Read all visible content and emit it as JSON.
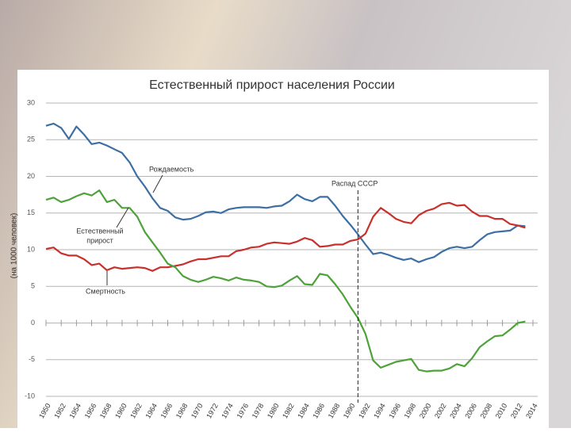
{
  "chart_data": {
    "type": "line",
    "title": "Естественный прирост населения России",
    "ylabel": "(на 1000 человек)",
    "x": [
      1950,
      1951,
      1952,
      1953,
      1954,
      1955,
      1956,
      1957,
      1958,
      1959,
      1960,
      1961,
      1962,
      1963,
      1964,
      1965,
      1966,
      1967,
      1968,
      1969,
      1970,
      1971,
      1972,
      1973,
      1974,
      1975,
      1976,
      1977,
      1978,
      1979,
      1980,
      1981,
      1982,
      1983,
      1984,
      1985,
      1986,
      1987,
      1988,
      1989,
      1990,
      1991,
      1992,
      1993,
      1994,
      1995,
      1996,
      1997,
      1998,
      1999,
      2000,
      2001,
      2002,
      2003,
      2004,
      2005,
      2006,
      2007,
      2008,
      2009,
      2010,
      2011,
      2012,
      2013
    ],
    "series": [
      {
        "name": "Рождаемость",
        "color": "#3d6fa5",
        "values": [
          26.9,
          27.2,
          26.6,
          25.1,
          26.8,
          25.7,
          24.4,
          24.6,
          24.2,
          23.7,
          23.2,
          21.9,
          20.0,
          18.6,
          17.0,
          15.7,
          15.3,
          14.4,
          14.1,
          14.2,
          14.6,
          15.1,
          15.2,
          15.0,
          15.5,
          15.7,
          15.8,
          15.8,
          15.8,
          15.7,
          15.9,
          16.0,
          16.6,
          17.5,
          16.9,
          16.6,
          17.2,
          17.2,
          16.0,
          14.6,
          13.4,
          12.1,
          10.7,
          9.4,
          9.6,
          9.3,
          8.9,
          8.6,
          8.8,
          8.3,
          8.7,
          9.0,
          9.7,
          10.2,
          10.4,
          10.2,
          10.4,
          11.3,
          12.1,
          12.4,
          12.5,
          12.6,
          13.3,
          13.2
        ]
      },
      {
        "name": "Смертность",
        "color": "#c8302c",
        "values": [
          10.1,
          10.3,
          9.5,
          9.2,
          9.2,
          8.7,
          7.9,
          8.1,
          7.2,
          7.6,
          7.4,
          7.5,
          7.6,
          7.5,
          7.1,
          7.6,
          7.6,
          7.8,
          8.0,
          8.4,
          8.7,
          8.7,
          8.9,
          9.1,
          9.1,
          9.8,
          10.0,
          10.3,
          10.4,
          10.8,
          11.0,
          10.9,
          10.8,
          11.1,
          11.6,
          11.3,
          10.4,
          10.5,
          10.7,
          10.7,
          11.2,
          11.4,
          12.2,
          14.5,
          15.7,
          15.0,
          14.2,
          13.8,
          13.6,
          14.7,
          15.3,
          15.6,
          16.2,
          16.4,
          16.0,
          16.1,
          15.2,
          14.6,
          14.6,
          14.2,
          14.2,
          13.5,
          13.3,
          13.0
        ]
      },
      {
        "name": "Естественный прирост",
        "color": "#4ea23a",
        "values": [
          16.8,
          17.1,
          16.5,
          16.8,
          17.3,
          17.7,
          17.4,
          18.1,
          16.5,
          16.8,
          15.7,
          15.7,
          14.5,
          12.4,
          11.0,
          9.6,
          8.1,
          7.6,
          6.4,
          5.9,
          5.6,
          5.9,
          6.3,
          6.1,
          5.8,
          6.2,
          5.9,
          5.8,
          5.6,
          5.0,
          4.9,
          5.1,
          5.8,
          6.4,
          5.3,
          5.2,
          6.7,
          6.5,
          5.3,
          3.9,
          2.2,
          0.7,
          -1.5,
          -5.1,
          -6.1,
          -5.7,
          -5.3,
          -5.1,
          -4.9,
          -6.4,
          -6.6,
          -6.5,
          -6.5,
          -6.2,
          -5.6,
          -5.9,
          -4.8,
          -3.3,
          -2.5,
          -1.8,
          -1.7,
          -0.9,
          0.0,
          0.2
        ]
      }
    ],
    "annotations": [
      {
        "lines": [
          "Рождаемость"
        ]
      },
      {
        "lines": [
          "Естественный",
          "прирост"
        ]
      },
      {
        "lines": [
          "Смертность"
        ]
      },
      {
        "lines": [
          "Распад СССР"
        ],
        "x": 1991
      }
    ],
    "xlim": [
      1950,
      2014
    ],
    "xticks": [
      1950,
      1952,
      1954,
      1956,
      1958,
      1960,
      1962,
      1964,
      1966,
      1968,
      1970,
      1972,
      1974,
      1976,
      1978,
      1980,
      1982,
      1984,
      1986,
      1988,
      1990,
      1992,
      1994,
      1996,
      1998,
      2000,
      2002,
      2004,
      2006,
      2008,
      2010,
      2012,
      2014
    ],
    "ylim": [
      -10,
      30
    ],
    "yticks": [
      -10,
      -5,
      0,
      5,
      10,
      15,
      20,
      25,
      30
    ],
    "grid": true
  }
}
